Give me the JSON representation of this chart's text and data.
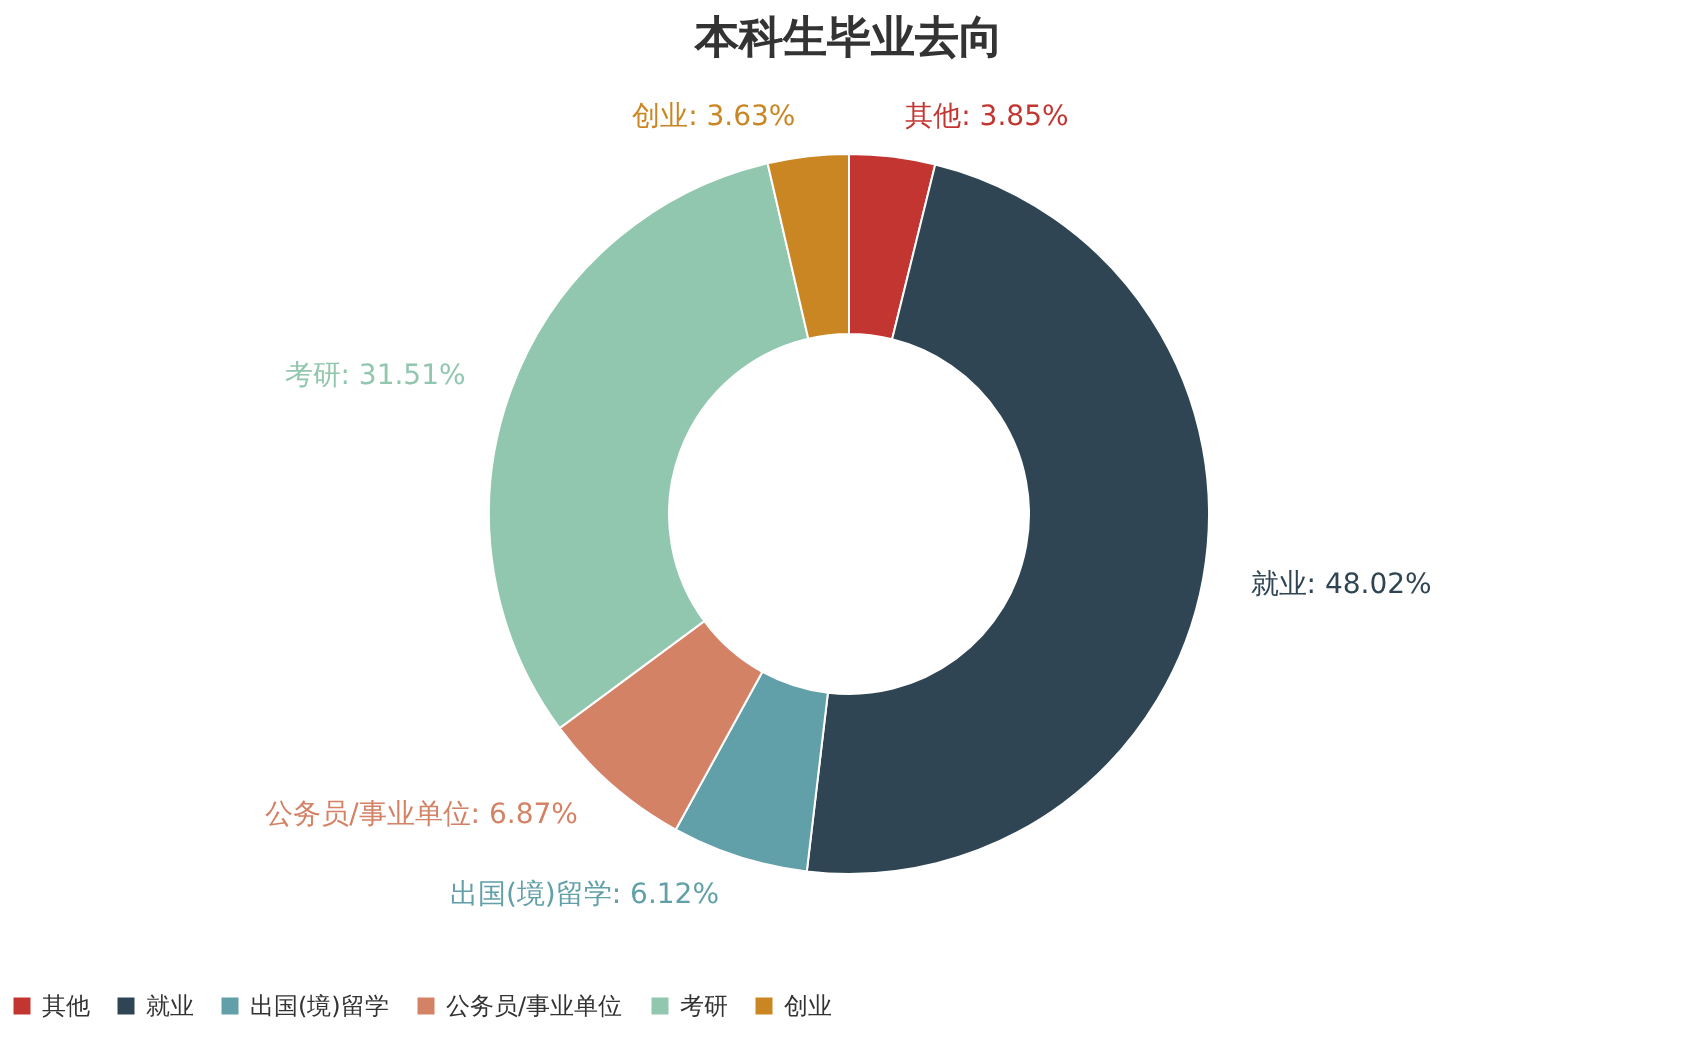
{
  "chart_data": {
    "type": "donut",
    "title": "本科生毕业去向",
    "categories": [
      "其他",
      "就业",
      "出国(境)留学",
      "公务员/事业单位",
      "考研",
      "创业"
    ],
    "values": [
      3.85,
      48.02,
      6.12,
      6.87,
      31.51,
      3.63
    ],
    "value_labels": [
      "其他: 3.85%",
      "就业: 48.02%",
      "出国(境)留学: 6.12%",
      "公务员/事业单位: 6.87%",
      "考研: 31.51%",
      "创业: 3.63%"
    ],
    "colors": [
      "#c23531",
      "#2f4554",
      "#61a0a8",
      "#d48265",
      "#91c7ae",
      "#ca8622"
    ],
    "legend": "bottom"
  }
}
